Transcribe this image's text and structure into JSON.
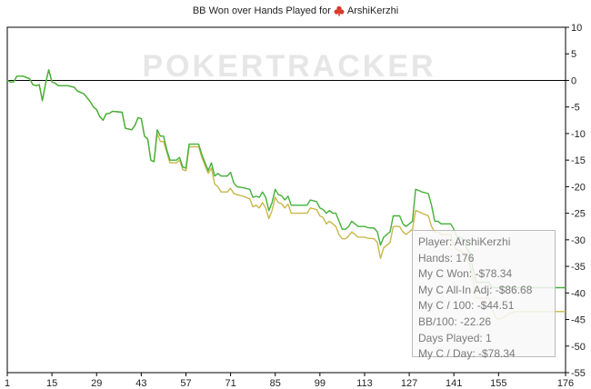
{
  "title": {
    "prefix": "BB Won over Hands Played for",
    "player": "ArshiKerzhi",
    "icon": "poker-club-icon"
  },
  "watermark": "POKERTRACKER",
  "colors": {
    "won": "#44b03a",
    "allin": "#c8b84a",
    "zero_line": "#000000",
    "axis": "#000000"
  },
  "chart_data": {
    "type": "line",
    "title": "BB Won over Hands Played for ArshiKerzhi",
    "xlabel": "",
    "ylabel": "",
    "xlim": [
      1,
      176
    ],
    "ylim": [
      -55,
      10
    ],
    "x_ticks": [
      1,
      15,
      29,
      43,
      57,
      71,
      85,
      99,
      113,
      127,
      141,
      155,
      176
    ],
    "y_ticks": [
      10,
      5,
      0,
      -5,
      -10,
      -15,
      -20,
      -25,
      -30,
      -35,
      -40,
      -45,
      -50,
      -55
    ],
    "grid": false,
    "legend": "none",
    "series": [
      {
        "color": "#44b03a",
        "points": [
          [
            1,
            0
          ],
          [
            2,
            -0.3
          ],
          [
            3,
            -0.3
          ],
          [
            4,
            0.8
          ],
          [
            6,
            0.8
          ],
          [
            8,
            0.3
          ],
          [
            9,
            -0.8
          ],
          [
            10,
            -1
          ],
          [
            11,
            -0.8
          ],
          [
            12,
            -3.8
          ],
          [
            13,
            -0.6
          ],
          [
            14,
            2
          ],
          [
            15,
            -0.3
          ],
          [
            16,
            -0.5
          ],
          [
            17,
            -1
          ],
          [
            20,
            -1
          ],
          [
            22,
            -1.3
          ],
          [
            23,
            -2
          ],
          [
            25,
            -2.5
          ],
          [
            27,
            -4
          ],
          [
            28,
            -5
          ],
          [
            29,
            -5.5
          ],
          [
            30,
            -6.8
          ],
          [
            31,
            -7.5
          ],
          [
            32,
            -6.3
          ],
          [
            33,
            -6.2
          ],
          [
            34,
            -5.8
          ],
          [
            37,
            -6
          ],
          [
            38,
            -9
          ],
          [
            40,
            -9.3
          ],
          [
            41,
            -8.5
          ],
          [
            42,
            -7
          ],
          [
            43,
            -7.2
          ],
          [
            44,
            -10.5
          ],
          [
            45,
            -11
          ],
          [
            46,
            -15
          ],
          [
            47,
            -15.3
          ],
          [
            48,
            -9.3
          ],
          [
            49,
            -10.5
          ],
          [
            50,
            -10.5
          ],
          [
            51,
            -13
          ],
          [
            52,
            -15
          ],
          [
            54,
            -15
          ],
          [
            55,
            -14.5
          ],
          [
            56,
            -16.3
          ],
          [
            57,
            -16.5
          ],
          [
            58,
            -12
          ],
          [
            61,
            -12
          ],
          [
            62,
            -14
          ],
          [
            63,
            -15.5
          ],
          [
            64,
            -17
          ],
          [
            65,
            -15.5
          ],
          [
            66,
            -18
          ],
          [
            67,
            -17.5
          ],
          [
            68,
            -18
          ],
          [
            70,
            -18
          ],
          [
            71,
            -17.3
          ],
          [
            72,
            -19.3
          ],
          [
            73,
            -20
          ],
          [
            75,
            -20.2
          ],
          [
            77,
            -20.5
          ],
          [
            78,
            -22
          ],
          [
            79,
            -21.8
          ],
          [
            80,
            -22
          ],
          [
            81,
            -21
          ],
          [
            82,
            -22
          ],
          [
            83,
            -24.5
          ],
          [
            84,
            -23
          ],
          [
            85,
            -20.5
          ],
          [
            86,
            -21.5
          ],
          [
            87,
            -21.7
          ],
          [
            88,
            -22.5
          ],
          [
            89,
            -21.8
          ],
          [
            90,
            -23.5
          ],
          [
            95,
            -23.5
          ],
          [
            96,
            -22.5
          ],
          [
            98,
            -22.8
          ],
          [
            99,
            -24
          ],
          [
            100,
            -24.3
          ],
          [
            101,
            -25
          ],
          [
            102,
            -24.5
          ],
          [
            103,
            -25
          ],
          [
            104,
            -25
          ],
          [
            105,
            -26.5
          ],
          [
            106,
            -28
          ],
          [
            107,
            -28
          ],
          [
            108,
            -27.5
          ],
          [
            109,
            -26.5
          ],
          [
            111,
            -27.5
          ],
          [
            113,
            -27.5
          ],
          [
            114,
            -27.7
          ],
          [
            116,
            -27.8
          ],
          [
            117,
            -28.5
          ],
          [
            118,
            -31
          ],
          [
            119,
            -29.5
          ],
          [
            120,
            -29
          ],
          [
            121,
            -28.5
          ],
          [
            122,
            -25.5
          ],
          [
            124,
            -25.5
          ],
          [
            125,
            -27
          ],
          [
            126,
            -27.5
          ],
          [
            128,
            -26.5
          ],
          [
            129,
            -20.5
          ],
          [
            130,
            -20.7
          ],
          [
            131,
            -21
          ],
          [
            133,
            -21.3
          ],
          [
            134,
            -23.5
          ],
          [
            135,
            -26.5
          ],
          [
            136,
            -26.5
          ],
          [
            137,
            -27
          ],
          [
            140,
            -27
          ],
          [
            141,
            -28
          ],
          [
            142,
            -29.5
          ],
          [
            143,
            -29.5
          ],
          [
            144,
            -30
          ],
          [
            145,
            -31.5
          ],
          [
            146,
            -32.5
          ],
          [
            147,
            -35.5
          ],
          [
            148,
            -38
          ],
          [
            152,
            -38
          ],
          [
            153,
            -39
          ],
          [
            176,
            -39
          ]
        ]
      },
      {
        "color": "#c8b84a",
        "points": [
          [
            1,
            0
          ],
          [
            2,
            -0.3
          ],
          [
            3,
            -0.3
          ],
          [
            4,
            0.8
          ],
          [
            6,
            0.8
          ],
          [
            8,
            0.3
          ],
          [
            9,
            -0.8
          ],
          [
            10,
            -1
          ],
          [
            11,
            -0.8
          ],
          [
            12,
            -3.8
          ],
          [
            13,
            -0.6
          ],
          [
            14,
            2
          ],
          [
            15,
            -0.3
          ],
          [
            16,
            -0.5
          ],
          [
            17,
            -1
          ],
          [
            20,
            -1
          ],
          [
            22,
            -1.3
          ],
          [
            23,
            -2
          ],
          [
            25,
            -2.5
          ],
          [
            27,
            -4
          ],
          [
            28,
            -5
          ],
          [
            29,
            -5.5
          ],
          [
            30,
            -6.8
          ],
          [
            31,
            -7.5
          ],
          [
            32,
            -6.3
          ],
          [
            33,
            -6.2
          ],
          [
            34,
            -5.8
          ],
          [
            37,
            -6
          ],
          [
            38,
            -9
          ],
          [
            40,
            -9.3
          ],
          [
            41,
            -8.5
          ],
          [
            42,
            -7
          ],
          [
            43,
            -7.2
          ],
          [
            44,
            -10.5
          ],
          [
            45,
            -11
          ],
          [
            46,
            -15
          ],
          [
            47,
            -15.3
          ],
          [
            48,
            -10
          ],
          [
            49,
            -11.5
          ],
          [
            50,
            -11.5
          ],
          [
            51,
            -13.5
          ],
          [
            52,
            -15.5
          ],
          [
            54,
            -15.5
          ],
          [
            55,
            -15
          ],
          [
            56,
            -16.8
          ],
          [
            57,
            -17
          ],
          [
            58,
            -12.5
          ],
          [
            61,
            -12.5
          ],
          [
            62,
            -14.5
          ],
          [
            63,
            -16
          ],
          [
            64,
            -17.5
          ],
          [
            65,
            -16.5
          ],
          [
            66,
            -19.5
          ],
          [
            67,
            -20
          ],
          [
            68,
            -21
          ],
          [
            70,
            -21
          ],
          [
            71,
            -20.3
          ],
          [
            72,
            -21.3
          ],
          [
            73,
            -21.5
          ],
          [
            75,
            -21.8
          ],
          [
            77,
            -22.3
          ],
          [
            78,
            -23.8
          ],
          [
            79,
            -23.5
          ],
          [
            80,
            -24
          ],
          [
            81,
            -23
          ],
          [
            82,
            -24
          ],
          [
            83,
            -26
          ],
          [
            84,
            -24.5
          ],
          [
            85,
            -22
          ],
          [
            86,
            -23
          ],
          [
            87,
            -23.2
          ],
          [
            88,
            -24
          ],
          [
            89,
            -23.3
          ],
          [
            90,
            -25
          ],
          [
            95,
            -25
          ],
          [
            96,
            -24
          ],
          [
            98,
            -24.3
          ],
          [
            99,
            -25.5
          ],
          [
            100,
            -25.8
          ],
          [
            101,
            -27
          ],
          [
            102,
            -26.5
          ],
          [
            103,
            -27
          ],
          [
            104,
            -27.5
          ],
          [
            105,
            -29
          ],
          [
            106,
            -29.8
          ],
          [
            107,
            -29.8
          ],
          [
            108,
            -29.3
          ],
          [
            109,
            -28.5
          ],
          [
            111,
            -29.5
          ],
          [
            113,
            -29.5
          ],
          [
            114,
            -29.7
          ],
          [
            116,
            -29.8
          ],
          [
            117,
            -30.5
          ],
          [
            118,
            -33.5
          ],
          [
            119,
            -31.5
          ],
          [
            120,
            -31
          ],
          [
            121,
            -30.5
          ],
          [
            122,
            -27.5
          ],
          [
            124,
            -27.5
          ],
          [
            125,
            -28.5
          ],
          [
            126,
            -29
          ],
          [
            128,
            -28
          ],
          [
            129,
            -24.5
          ],
          [
            130,
            -24.7
          ],
          [
            131,
            -25
          ],
          [
            133,
            -25.5
          ],
          [
            134,
            -27.5
          ],
          [
            135,
            -28.5
          ],
          [
            136,
            -28.5
          ],
          [
            137,
            -29
          ],
          [
            140,
            -29
          ],
          [
            141,
            -31
          ],
          [
            142,
            -32
          ],
          [
            143,
            -32
          ],
          [
            144,
            -32.5
          ],
          [
            145,
            -33.5
          ],
          [
            146,
            -34.5
          ],
          [
            147,
            -37.5
          ],
          [
            148,
            -41
          ],
          [
            152,
            -41
          ],
          [
            153,
            -43
          ],
          [
            154,
            -44.5
          ],
          [
            155,
            -45
          ],
          [
            157,
            -44.5
          ],
          [
            158,
            -44
          ],
          [
            160,
            -43.5
          ],
          [
            176,
            -43.5
          ]
        ]
      }
    ]
  },
  "tooltip": {
    "lines": [
      "Player: ArshiKerzhi",
      "Hands: 176",
      "My C Won: -$78.34",
      "My C All-In Adj: -$86.68",
      "My C / 100: -$44.51",
      "BB/100: -22.26",
      "Days Played: 1",
      "My C / Day: -$78.34"
    ]
  }
}
